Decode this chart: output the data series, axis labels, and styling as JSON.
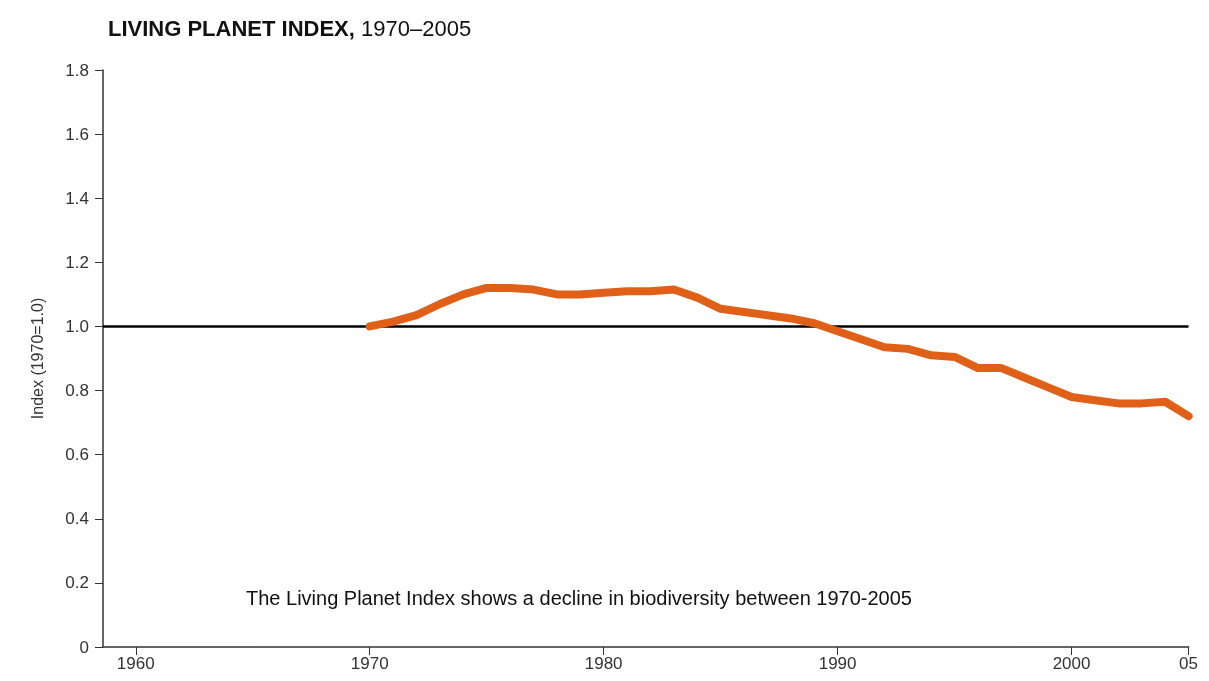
{
  "chart_data": {
    "type": "line",
    "title": "LIVING PLANET INDEX, 1970–2005",
    "ylabel": "Index (1970=1.0)",
    "x": [
      1970,
      1971,
      1972,
      1973,
      1974,
      1975,
      1976,
      1977,
      1978,
      1979,
      1980,
      1981,
      1982,
      1983,
      1984,
      1985,
      1986,
      1987,
      1988,
      1989,
      1990,
      1991,
      1992,
      1993,
      1994,
      1995,
      1996,
      1997,
      1998,
      1999,
      2000,
      2001,
      2002,
      2003,
      2004,
      2005
    ],
    "series": [
      {
        "color": "#e06018",
        "values": [
          1.0,
          1.015,
          1.035,
          1.07,
          1.1,
          1.12,
          1.12,
          1.115,
          1.1,
          1.1,
          1.105,
          1.11,
          1.11,
          1.115,
          1.09,
          1.055,
          1.045,
          1.035,
          1.025,
          1.01,
          0.985,
          0.96,
          0.935,
          0.93,
          0.91,
          0.905,
          0.87,
          0.87,
          0.84,
          0.81,
          0.78,
          0.77,
          0.76,
          0.76,
          0.765,
          0.72
        ]
      }
    ],
    "xlim": [
      1958.6,
      2005
    ],
    "xticks": [
      1960,
      1970,
      1980,
      1990,
      2000,
      {
        "value": 2005,
        "label": "05"
      }
    ],
    "ylim": [
      0,
      1.8
    ],
    "yticks": [
      0,
      0.2,
      0.4,
      0.6,
      0.8,
      {
        "value": 1,
        "label": "1.0"
      },
      1.2,
      1.4,
      1.6,
      1.8
    ],
    "ref_lines": [
      {
        "axis": "y",
        "value": 1,
        "color": "#000000"
      }
    ],
    "annotations": [
      "The Living Planet Index shows a decline in biodiversity between 1970-2005"
    ],
    "grid": false,
    "line_style": "solid"
  }
}
